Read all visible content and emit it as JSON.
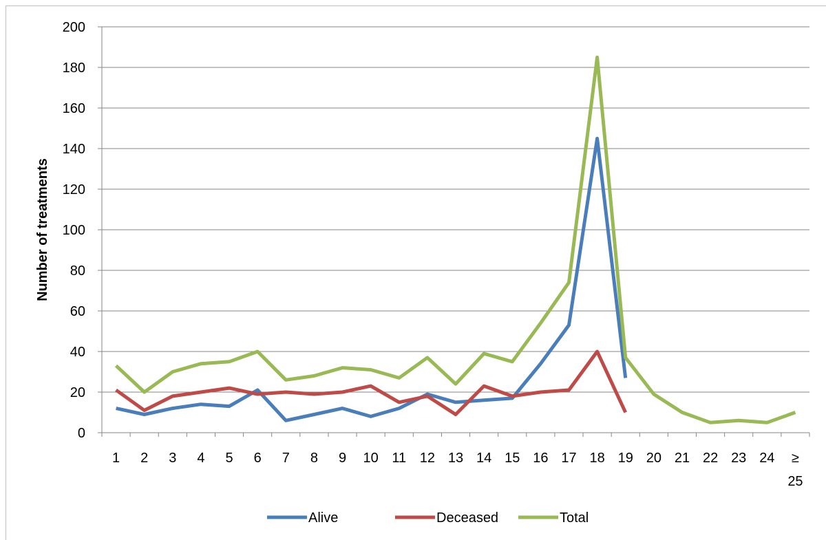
{
  "chart_data": {
    "type": "line",
    "title": "",
    "xlabel": "",
    "ylabel": "Number of treatments",
    "ylim": [
      0,
      200
    ],
    "yticks": [
      0,
      20,
      40,
      60,
      80,
      100,
      120,
      140,
      160,
      180,
      200
    ],
    "grid": "horizontal",
    "legend_position": "bottom",
    "categories": [
      "1",
      "2",
      "3",
      "4",
      "5",
      "6",
      "7",
      "8",
      "9",
      "10",
      "11",
      "12",
      "13",
      "14",
      "15",
      "16",
      "17",
      "18",
      "19",
      "20",
      "21",
      "22",
      "23",
      "24",
      "≥ 25"
    ],
    "series": [
      {
        "name": "Alive",
        "color": "#4a7ebb",
        "values": [
          12,
          9,
          12,
          14,
          13,
          21,
          6,
          9,
          12,
          8,
          12,
          19,
          15,
          16,
          17,
          34,
          53,
          145,
          27,
          null,
          null,
          null,
          null,
          null,
          null
        ]
      },
      {
        "name": "Deceased",
        "color": "#be4b48",
        "values": [
          21,
          11,
          18,
          20,
          22,
          19,
          20,
          19,
          20,
          23,
          15,
          18,
          9,
          23,
          18,
          20,
          21,
          40,
          10,
          null,
          null,
          null,
          null,
          null,
          null
        ]
      },
      {
        "name": "Total",
        "color": "#98b954",
        "values": [
          33,
          20,
          30,
          34,
          35,
          40,
          26,
          28,
          32,
          31,
          27,
          37,
          24,
          39,
          35,
          54,
          74,
          185,
          37,
          19,
          10,
          5,
          6,
          5,
          10
        ]
      }
    ]
  }
}
